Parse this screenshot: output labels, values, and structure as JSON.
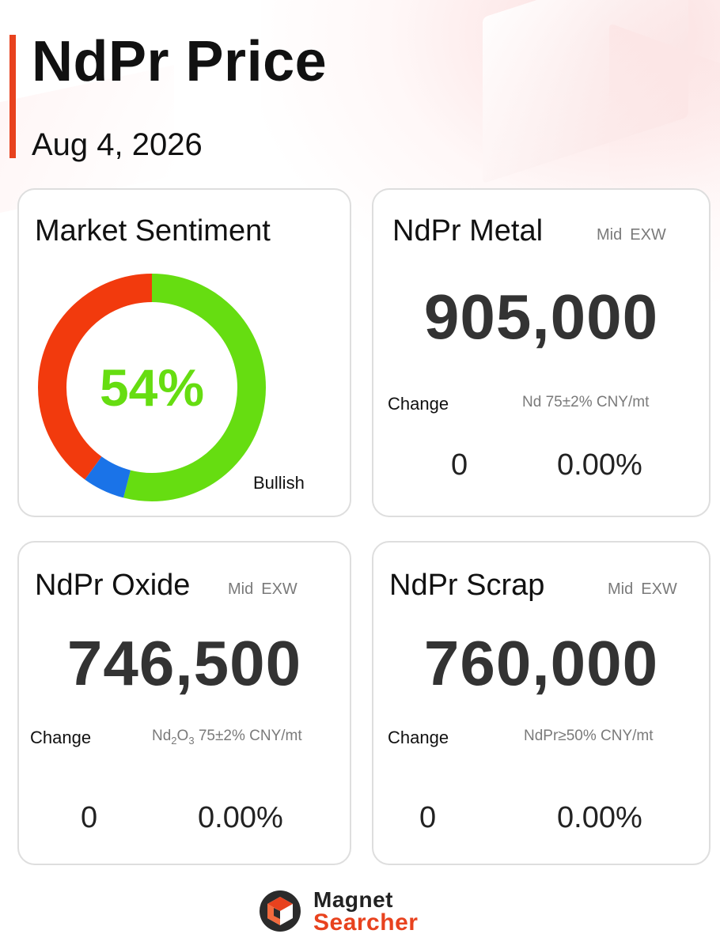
{
  "header": {
    "title": "NdPr Price",
    "date": "Aug 4, 2026",
    "accent_color": "#e8421e"
  },
  "sentiment": {
    "title": "Market Sentiment",
    "percent_label": "54%",
    "label": "Bullish",
    "segments": [
      {
        "name": "bullish",
        "fraction": 0.54,
        "color": "#66dd11"
      },
      {
        "name": "neutral",
        "fraction": 0.06,
        "color": "#1a73e8"
      },
      {
        "name": "bearish",
        "fraction": 0.4,
        "color": "#f23a0d"
      }
    ]
  },
  "cards": {
    "metal": {
      "title": "NdPr Metal",
      "tag1": "Mid",
      "tag2": "EXW",
      "price": "905,000",
      "change_label": "Change",
      "spec": "Nd 75±2% CNY/mt",
      "change_abs": "0",
      "change_pct": "0.00%"
    },
    "oxide": {
      "title": "NdPr Oxide",
      "tag1": "Mid",
      "tag2": "EXW",
      "price": "746,500",
      "change_label": "Change",
      "spec_prefix": "Nd",
      "spec_sub1": "2",
      "spec_mid": "O",
      "spec_sub2": "3",
      "spec_suffix": " 75±2% CNY/mt",
      "change_abs": "0",
      "change_pct": "0.00%"
    },
    "scrap": {
      "title": "NdPr Scrap",
      "tag1": "Mid",
      "tag2": "EXW",
      "price": "760,000",
      "change_label": "Change",
      "spec": "NdPr≥50% CNY/mt",
      "change_abs": "0",
      "change_pct": "0.00%"
    }
  },
  "logo": {
    "line1": "Magnet",
    "line2": "Searcher"
  }
}
